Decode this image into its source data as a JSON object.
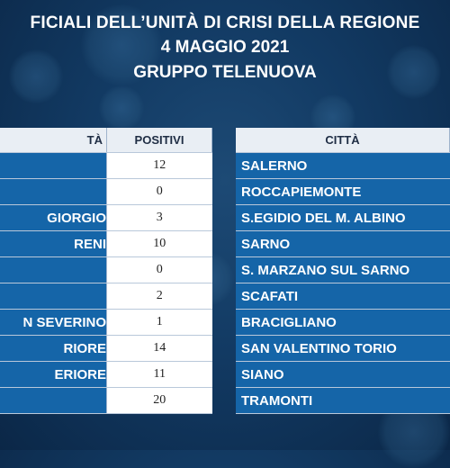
{
  "header": {
    "line1": "FICIALI DELL’UNITÀ DI CRISI DELLA REGIONE",
    "line2": "4 MAGGIO 2021",
    "line3": "GRUPPO TELENUOVA"
  },
  "left_table": {
    "headers": [
      "TÀ",
      "POSITIVI"
    ],
    "rows": [
      {
        "city": "",
        "positivi": "12"
      },
      {
        "city": "",
        "positivi": "0"
      },
      {
        "city": "GIORGIO",
        "positivi": "3"
      },
      {
        "city": "RENI",
        "positivi": "10"
      },
      {
        "city": "",
        "positivi": "0"
      },
      {
        "city": "",
        "positivi": "2"
      },
      {
        "city": "N SEVERINO",
        "positivi": "1"
      },
      {
        "city": "RIORE",
        "positivi": "14"
      },
      {
        "city": "ERIORE",
        "positivi": "11"
      },
      {
        "city": "",
        "positivi": "20"
      }
    ]
  },
  "right_table": {
    "header": "CITTÀ",
    "rows": [
      "SALERNO",
      "ROCCAPIEMONTE",
      "S.EGIDIO DEL M. ALBINO",
      "SARNO",
      "S. MARZANO SUL SARNO",
      "SCAFATI",
      "BRACIGLIANO",
      "SAN VALENTINO TORIO",
      "SIANO",
      "TRAMONTI"
    ]
  },
  "colors": {
    "background": "#123a63",
    "row_blue": "#1565a8",
    "header_bg": "#e9eef4"
  }
}
